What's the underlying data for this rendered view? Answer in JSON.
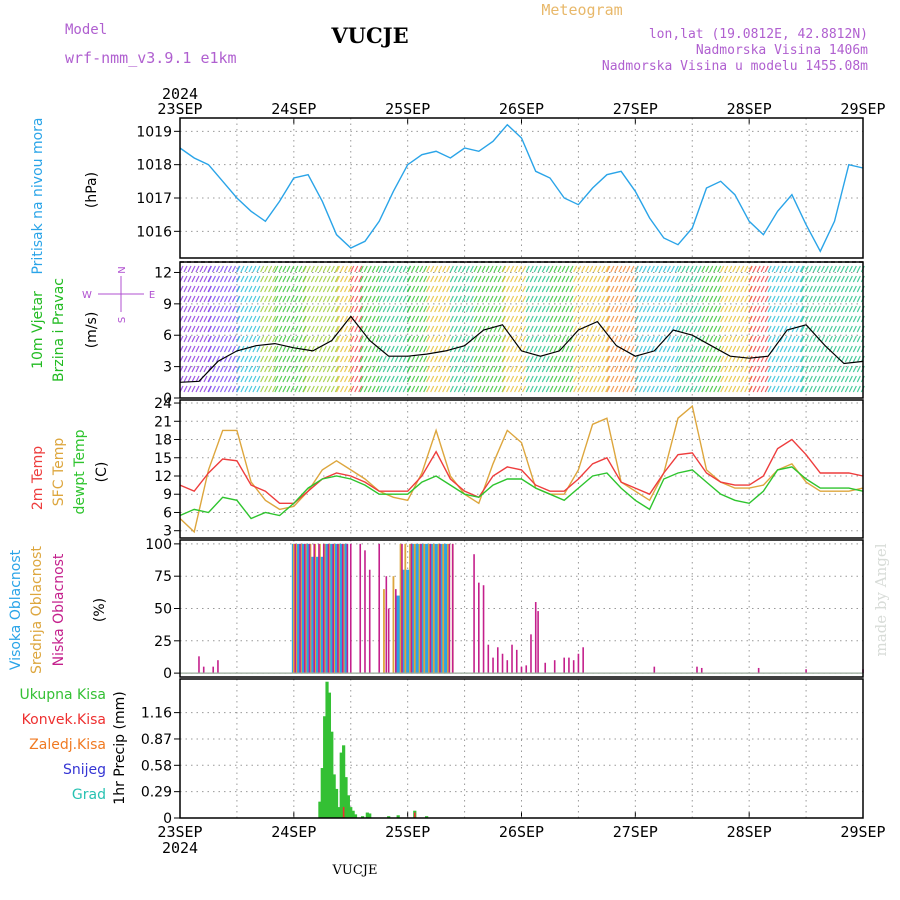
{
  "header": {
    "model_label": "Model",
    "model_name": "wrf-nmm_v3.9.1  e1km",
    "station": "VUCJE",
    "product": "Meteogram",
    "coords": "lon,lat (19.0812E, 42.8812N)",
    "elevation": "Nadmorska Visina 1406m",
    "model_elevation": "Nadmorska Visina u modelu 1455.08m",
    "footer_station": "VUCJE",
    "credit": "made by Angel"
  },
  "colors": {
    "pressure": "#2aa4e8",
    "temp": "#ee3d3d",
    "sfc": "#dda63d",
    "dew": "#2ec42e",
    "high": "#2aa4e8",
    "mid": "#dda63d",
    "low": "#c4208c",
    "total": "#34c034",
    "conv": "#ee3030",
    "frozen": "#f07a22",
    "snow": "#3535d4",
    "graupel": "#27c2b2",
    "wind_label": "#22bb22",
    "compass": "#b050d0",
    "header_purple": "#b060d0",
    "header_orange": "#e8b86a"
  },
  "time_axis": {
    "year": "2024",
    "labels": [
      "23SEP",
      "24SEP",
      "25SEP",
      "26SEP",
      "27SEP",
      "28SEP",
      "29SEP"
    ]
  },
  "compass": {
    "n": "N",
    "s": "S",
    "w": "W",
    "e": "E"
  },
  "chart_data": [
    {
      "type": "line",
      "name": "pressure",
      "ylabel_lines": [
        "Pritisak na nivou mora"
      ],
      "unit": "(hPa)",
      "ylim": [
        1015.2,
        1019.4
      ],
      "yticks": [
        1016,
        1017,
        1018,
        1019
      ],
      "grid": true,
      "x_hours": [
        0,
        3,
        6,
        9,
        12,
        15,
        18,
        21,
        24,
        27,
        30,
        33,
        36,
        39,
        42,
        45,
        48,
        51,
        54,
        57,
        60,
        63,
        66,
        69,
        72,
        75,
        78,
        81,
        84,
        87,
        90,
        93,
        96,
        99,
        102,
        105,
        108,
        111,
        114,
        117,
        120,
        123,
        126,
        129,
        132,
        135,
        138,
        141,
        144
      ],
      "series": [
        {
          "name": "",
          "values": [
            1018.5,
            1018.2,
            1018.0,
            1017.5,
            1017.0,
            1016.6,
            1016.3,
            1016.9,
            1017.6,
            1017.7,
            1016.9,
            1015.9,
            1015.5,
            1015.7,
            1016.3,
            1017.2,
            1018.0,
            1018.3,
            1018.4,
            1018.2,
            1018.5,
            1018.4,
            1018.7,
            1019.2,
            1018.8,
            1017.8,
            1017.6,
            1017.0,
            1016.8,
            1017.3,
            1017.7,
            1017.8,
            1017.2,
            1016.4,
            1015.8,
            1015.6,
            1016.1,
            1017.3,
            1017.5,
            1017.1,
            1016.3,
            1015.9,
            1016.6,
            1017.1,
            1016.2,
            1015.4,
            1016.3,
            1018.0,
            1017.9
          ]
        }
      ]
    },
    {
      "type": "line",
      "name": "wind",
      "ylabel_lines": [
        "10m Vjetar",
        "Brzina i Pravac"
      ],
      "unit": "(m/s)",
      "ylim": [
        0,
        13
      ],
      "yticks": [
        0,
        3,
        6,
        9,
        12
      ],
      "grid": true,
      "x_hours": [
        0,
        4,
        8,
        12,
        16,
        20,
        24,
        28,
        32,
        36,
        40,
        44,
        48,
        52,
        56,
        60,
        64,
        68,
        72,
        76,
        80,
        84,
        88,
        92,
        96,
        100,
        104,
        108,
        112,
        116,
        120,
        124,
        128,
        132,
        136,
        140,
        144
      ],
      "series": [
        {
          "name": "",
          "values": [
            1.5,
            1.6,
            3.5,
            4.5,
            5.0,
            5.2,
            4.8,
            4.5,
            5.5,
            7.8,
            5.5,
            4.0,
            4.0,
            4.2,
            4.5,
            5.0,
            6.5,
            7.0,
            4.5,
            4.0,
            4.5,
            6.5,
            7.3,
            5.0,
            4.0,
            4.5,
            6.5,
            6.0,
            5.0,
            4.0,
            3.8,
            4.0,
            6.5,
            7.0,
            5.0,
            3.3,
            3.5
          ]
        }
      ]
    },
    {
      "type": "line",
      "name": "temperature",
      "ylabel_lines": [
        "2m Temp",
        "SFC Temp",
        "dewpt Temp"
      ],
      "unit": "(C)",
      "ylim": [
        1.8,
        24.5
      ],
      "yticks": [
        3,
        6,
        9,
        12,
        15,
        18,
        21,
        24
      ],
      "grid": true,
      "x_hours": [
        0,
        3,
        6,
        9,
        12,
        15,
        18,
        21,
        24,
        27,
        30,
        33,
        36,
        39,
        42,
        45,
        48,
        51,
        54,
        57,
        60,
        63,
        66,
        69,
        72,
        75,
        78,
        81,
        84,
        87,
        90,
        93,
        96,
        99,
        102,
        105,
        108,
        111,
        114,
        117,
        120,
        123,
        126,
        129,
        132,
        135,
        138,
        141,
        144
      ],
      "series": [
        {
          "name": "2m Temp",
          "values": [
            10.5,
            9.5,
            12.5,
            14.8,
            14.5,
            10.5,
            9.5,
            7.5,
            7.5,
            9.5,
            11.5,
            12.5,
            12.0,
            11.0,
            9.5,
            9.5,
            9.5,
            12.0,
            16.0,
            11.5,
            9.5,
            8.5,
            12.0,
            13.5,
            13.0,
            10.5,
            9.5,
            9.5,
            11.5,
            14.0,
            15.0,
            11.0,
            10.0,
            9.0,
            12.5,
            15.5,
            15.8,
            12.5,
            11.0,
            10.5,
            10.5,
            12.0,
            16.5,
            18.0,
            15.5,
            12.5,
            12.5,
            12.5,
            12.0
          ]
        },
        {
          "name": "SFC Temp",
          "values": [
            5.0,
            2.8,
            13.0,
            19.5,
            19.5,
            11.0,
            8.0,
            6.5,
            7.0,
            9.5,
            13.0,
            14.5,
            13.0,
            11.5,
            9.5,
            8.5,
            8.0,
            12.5,
            19.5,
            12.0,
            9.0,
            7.5,
            14.0,
            19.5,
            17.5,
            10.0,
            9.0,
            9.0,
            13.0,
            20.5,
            21.5,
            11.0,
            9.5,
            8.0,
            12.5,
            21.5,
            23.5,
            13.0,
            11.0,
            10.0,
            10.0,
            10.5,
            13.0,
            14.0,
            11.0,
            9.5,
            9.5,
            9.5,
            10.0
          ]
        },
        {
          "name": "dewpt Temp",
          "values": [
            5.5,
            6.5,
            6.0,
            8.5,
            8.0,
            5.0,
            6.0,
            5.5,
            7.5,
            10.0,
            11.5,
            12.0,
            11.5,
            10.5,
            9.0,
            9.0,
            9.0,
            11.0,
            12.0,
            10.5,
            9.0,
            8.5,
            10.5,
            11.5,
            11.5,
            10.0,
            9.0,
            8.0,
            10.0,
            12.0,
            12.5,
            10.0,
            8.0,
            6.5,
            11.5,
            12.5,
            13.0,
            11.0,
            9.0,
            8.0,
            7.5,
            9.5,
            13.0,
            13.5,
            11.5,
            10.0,
            10.0,
            10.0,
            9.5
          ]
        }
      ]
    },
    {
      "type": "bar",
      "name": "clouds",
      "ylabel_lines": [
        "Visoka Oblacnost",
        "Srednja Oblacnost",
        "Niska Oblacnost"
      ],
      "unit": "(%)",
      "ylim": [
        -3,
        103
      ],
      "yticks": [
        0,
        25,
        50,
        75,
        100
      ],
      "grid": true,
      "series": [
        {
          "name": "Visoka Oblacnost",
          "bars": [
            [
              24,
              100
            ],
            [
              25,
              100
            ],
            [
              26,
              100
            ],
            [
              27,
              100
            ],
            [
              28,
              90
            ],
            [
              29,
              90
            ],
            [
              30,
              90
            ],
            [
              31,
              100
            ],
            [
              32,
              100
            ],
            [
              33,
              100
            ],
            [
              34,
              100
            ],
            [
              35,
              100
            ],
            [
              46,
              60
            ],
            [
              47,
              80
            ],
            [
              48,
              80
            ],
            [
              49,
              100
            ],
            [
              50,
              100
            ],
            [
              51,
              100
            ],
            [
              52,
              100
            ],
            [
              53,
              100
            ],
            [
              54,
              100
            ],
            [
              55,
              100
            ],
            [
              56,
              100
            ]
          ]
        },
        {
          "name": "Srednja Oblacnost",
          "bars": [
            [
              24,
              100
            ],
            [
              24.5,
              100
            ],
            [
              25.5,
              100
            ],
            [
              26.5,
              100
            ],
            [
              27.5,
              100
            ],
            [
              28.5,
              100
            ],
            [
              29.5,
              100
            ],
            [
              30.5,
              100
            ],
            [
              31.5,
              100
            ],
            [
              32.5,
              100
            ],
            [
              33.5,
              100
            ],
            [
              34.5,
              100
            ],
            [
              43,
              65
            ],
            [
              45,
              75
            ],
            [
              46.5,
              100
            ],
            [
              47.5,
              100
            ],
            [
              48.5,
              100
            ],
            [
              49.5,
              100
            ],
            [
              50.5,
              100
            ],
            [
              51.5,
              100
            ],
            [
              52.5,
              100
            ],
            [
              53.5,
              100
            ],
            [
              54.5,
              100
            ],
            [
              55.5,
              100
            ],
            [
              56.5,
              100
            ],
            [
              57.5,
              100
            ]
          ]
        },
        {
          "name": "Niska Oblacnost",
          "bars": [
            [
              4,
              13
            ],
            [
              5,
              5
            ],
            [
              7,
              5
            ],
            [
              8,
              10
            ],
            [
              24.3,
              100
            ],
            [
              25.3,
              100
            ],
            [
              26.3,
              100
            ],
            [
              27.3,
              100
            ],
            [
              28.3,
              100
            ],
            [
              29.3,
              100
            ],
            [
              30.3,
              100
            ],
            [
              31.3,
              100
            ],
            [
              32.3,
              100
            ],
            [
              33.3,
              100
            ],
            [
              34.3,
              100
            ],
            [
              35.3,
              100
            ],
            [
              36,
              100
            ],
            [
              38,
              100
            ],
            [
              39,
              95
            ],
            [
              40,
              80
            ],
            [
              42,
              100
            ],
            [
              43.5,
              75
            ],
            [
              44,
              50
            ],
            [
              45.5,
              65
            ],
            [
              46.8,
              100
            ],
            [
              48.8,
              100
            ],
            [
              50.8,
              100
            ],
            [
              52.8,
              100
            ],
            [
              54.8,
              100
            ],
            [
              56.8,
              100
            ],
            [
              57.5,
              100
            ],
            [
              62,
              92
            ],
            [
              63,
              70
            ],
            [
              64,
              68
            ],
            [
              65,
              22
            ],
            [
              66,
              12
            ],
            [
              67,
              20
            ],
            [
              68,
              15
            ],
            [
              69,
              10
            ],
            [
              70,
              22
            ],
            [
              71,
              18
            ],
            [
              72,
              5
            ],
            [
              73,
              6
            ],
            [
              74,
              30
            ],
            [
              75,
              55
            ],
            [
              75.5,
              48
            ],
            [
              77,
              8
            ],
            [
              79,
              10
            ],
            [
              81,
              12
            ],
            [
              82,
              12
            ],
            [
              83,
              10
            ],
            [
              84,
              15
            ],
            [
              85,
              20
            ],
            [
              100,
              5
            ],
            [
              109,
              5
            ],
            [
              110,
              4
            ],
            [
              122,
              4
            ],
            [
              132,
              3
            ],
            [
              144,
              3
            ]
          ]
        }
      ]
    },
    {
      "type": "bar",
      "name": "precipitation",
      "ylabel_lines": [
        "1hr Precip (mm)"
      ],
      "legend": [
        "Ukupna Kisa",
        "Konvek.Kisa",
        "Zaledj.Kisa",
        "Snijeg",
        "Grad"
      ],
      "unit": "",
      "ylim": [
        0,
        1.53
      ],
      "yticks": [
        0,
        0.29,
        0.58,
        0.87,
        1.16
      ],
      "grid": true,
      "series": [
        {
          "name": "Ukupna Kisa",
          "bars": [
            [
              29.5,
              0.18
            ],
            [
              30,
              0.55
            ],
            [
              30.5,
              1.12
            ],
            [
              31,
              1.5
            ],
            [
              31.5,
              1.38
            ],
            [
              32,
              0.95
            ],
            [
              32.5,
              0.48
            ],
            [
              33,
              0.32
            ],
            [
              33.5,
              0.12
            ],
            [
              34,
              0.72
            ],
            [
              34.5,
              0.8
            ],
            [
              35,
              0.45
            ],
            [
              35.5,
              0.25
            ],
            [
              36,
              0.12
            ],
            [
              36.5,
              0.08
            ],
            [
              37,
              0.04
            ],
            [
              38.5,
              0.02
            ],
            [
              39.5,
              0.06
            ],
            [
              40,
              0.05
            ],
            [
              44,
              0.02
            ],
            [
              46,
              0.03
            ],
            [
              49.5,
              0.08
            ],
            [
              52,
              0.02
            ]
          ]
        },
        {
          "name": "Konvek.Kisa",
          "bars": [
            [
              34.5,
              0.12
            ],
            [
              49.5,
              0.06
            ]
          ]
        },
        {
          "name": "Zaledj.Kisa",
          "bars": []
        },
        {
          "name": "Snijeg",
          "bars": []
        },
        {
          "name": "Grad",
          "bars": []
        }
      ]
    }
  ]
}
